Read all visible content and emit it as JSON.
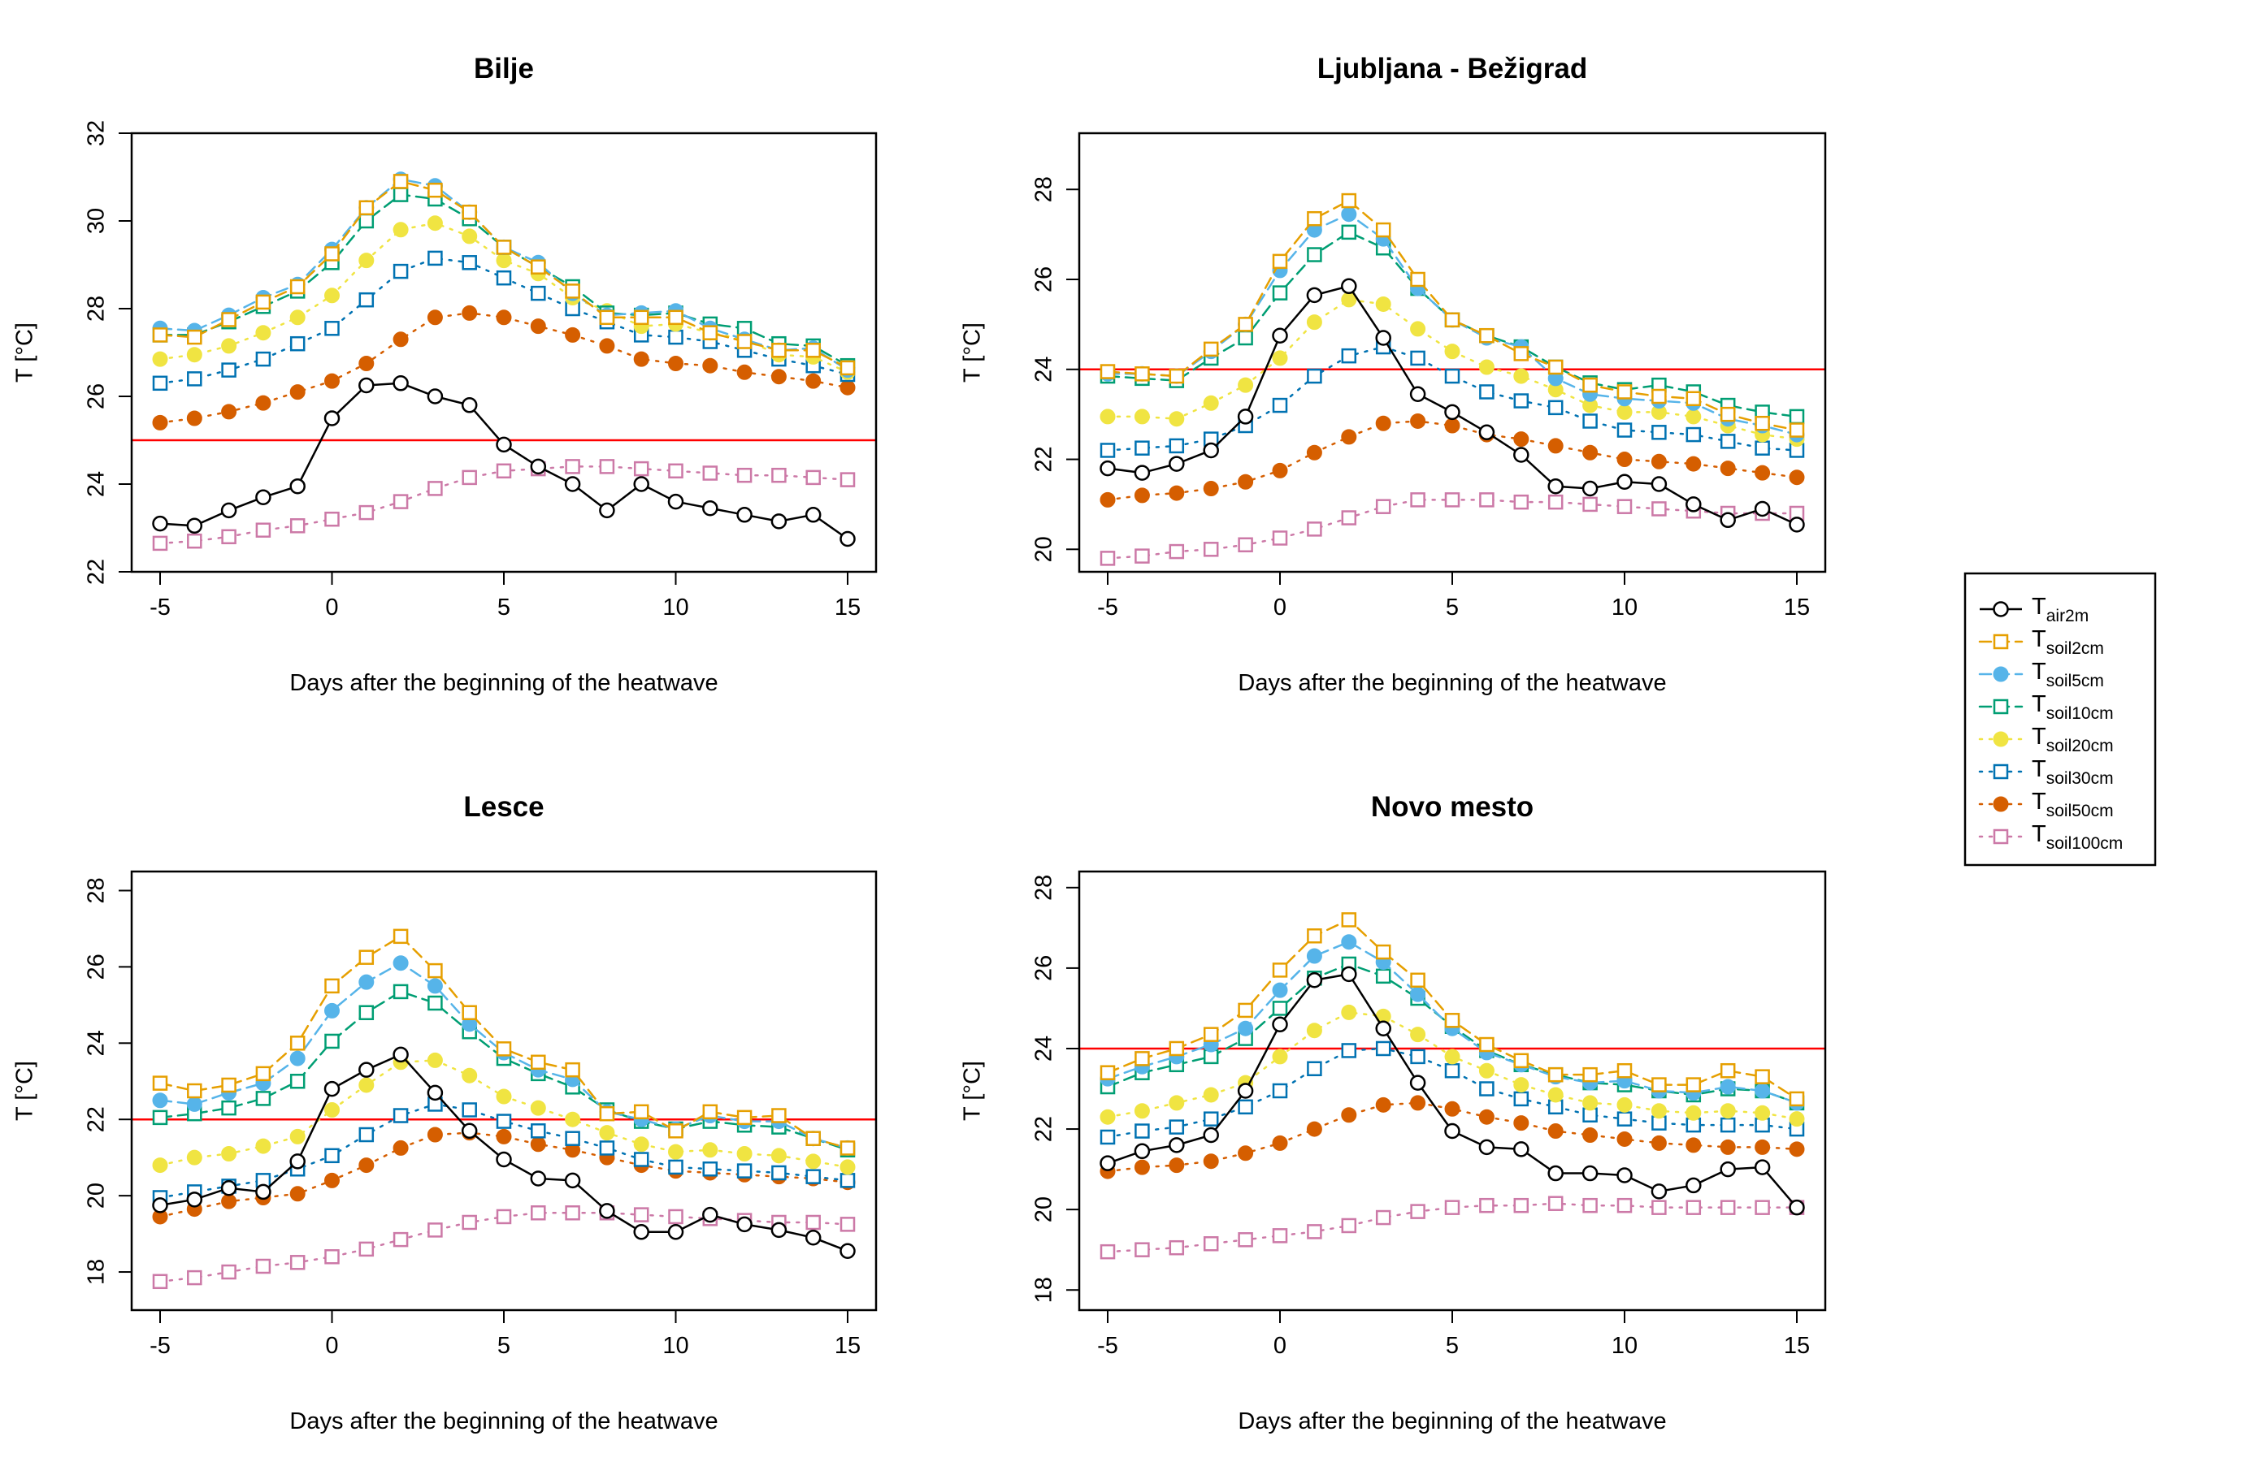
{
  "x_label": "Days after the beginning of the heatwave",
  "y_label": "T [°C]",
  "legend": {
    "placement": "right",
    "entries": [
      {
        "main": "T",
        "sub": "air2m",
        "color": "#000000",
        "marker": "circle-open",
        "line": "solid"
      },
      {
        "main": "T",
        "sub": "soil2cm",
        "color": "#E69F00",
        "marker": "square-open",
        "line": "dashed"
      },
      {
        "main": "T",
        "sub": "soil5cm",
        "color": "#56B4E9",
        "marker": "circle-filled",
        "line": "dashed"
      },
      {
        "main": "T",
        "sub": "soil10cm",
        "color": "#009E73",
        "marker": "square-open",
        "line": "dashed"
      },
      {
        "main": "T",
        "sub": "soil20cm",
        "color": "#F0E442",
        "marker": "circle-filled",
        "line": "dotted"
      },
      {
        "main": "T",
        "sub": "soil30cm",
        "color": "#0072B2",
        "marker": "square-open",
        "line": "dotted"
      },
      {
        "main": "T",
        "sub": "soil50cm",
        "color": "#D55E00",
        "marker": "circle-filled",
        "line": "dotted"
      },
      {
        "main": "T",
        "sub": "soil100cm",
        "color": "#CC79A7",
        "marker": "square-open",
        "line": "dotted"
      }
    ]
  },
  "chart_data": [
    {
      "type": "line",
      "title": "Bilje",
      "xlabel": "Days after the beginning of the heatwave",
      "ylabel": "T [°C]",
      "xlim": [
        -5,
        15
      ],
      "ylim": [
        22,
        32
      ],
      "xticks": [
        -5,
        0,
        5,
        10,
        15
      ],
      "yticks": [
        22,
        24,
        26,
        28,
        30,
        32
      ],
      "threshold": 25,
      "x": [
        -5,
        -4,
        -3,
        -2,
        -1,
        0,
        1,
        2,
        3,
        4,
        5,
        6,
        7,
        8,
        9,
        10,
        11,
        12,
        13,
        14,
        15
      ],
      "series": [
        {
          "name": "air2m",
          "values": [
            23.1,
            23.05,
            23.4,
            23.7,
            23.95,
            25.5,
            26.25,
            26.3,
            26.0,
            25.8,
            24.9,
            24.4,
            24.0,
            23.4,
            24.0,
            23.6,
            23.45,
            23.3,
            23.15,
            23.3,
            22.75
          ]
        },
        {
          "name": "soil2cm",
          "values": [
            27.4,
            27.35,
            27.75,
            28.15,
            28.5,
            29.25,
            30.3,
            30.9,
            30.7,
            30.2,
            29.4,
            28.95,
            28.4,
            27.8,
            27.8,
            27.8,
            27.45,
            27.25,
            27.05,
            27.05,
            26.65
          ]
        },
        {
          "name": "soil5cm",
          "values": [
            27.55,
            27.5,
            27.85,
            28.25,
            28.55,
            29.35,
            30.3,
            30.95,
            30.8,
            30.2,
            29.4,
            29.05,
            28.35,
            27.85,
            27.9,
            27.95,
            27.55,
            27.3,
            27.05,
            27.1,
            26.6
          ]
        },
        {
          "name": "soil10cm",
          "values": [
            27.4,
            27.4,
            27.7,
            28.05,
            28.4,
            29.05,
            30.0,
            30.6,
            30.5,
            30.05,
            29.4,
            28.95,
            28.5,
            27.9,
            27.85,
            27.9,
            27.65,
            27.55,
            27.2,
            27.15,
            26.7
          ]
        },
        {
          "name": "soil20cm",
          "values": [
            26.85,
            26.95,
            27.15,
            27.45,
            27.8,
            28.3,
            29.1,
            29.8,
            29.95,
            29.65,
            29.1,
            28.8,
            28.25,
            27.95,
            27.6,
            27.65,
            27.45,
            27.3,
            26.95,
            26.9,
            26.55
          ]
        },
        {
          "name": "soil30cm",
          "values": [
            26.3,
            26.4,
            26.6,
            26.85,
            27.2,
            27.55,
            28.2,
            28.85,
            29.15,
            29.05,
            28.7,
            28.35,
            28.0,
            27.7,
            27.4,
            27.35,
            27.25,
            27.05,
            26.85,
            26.7,
            26.5
          ]
        },
        {
          "name": "soil50cm",
          "values": [
            25.4,
            25.5,
            25.65,
            25.85,
            26.1,
            26.35,
            26.75,
            27.3,
            27.8,
            27.9,
            27.8,
            27.6,
            27.4,
            27.15,
            26.85,
            26.75,
            26.7,
            26.55,
            26.45,
            26.35,
            26.2
          ]
        },
        {
          "name": "soil100cm",
          "values": [
            22.65,
            22.7,
            22.8,
            22.95,
            23.05,
            23.2,
            23.35,
            23.6,
            23.9,
            24.15,
            24.3,
            24.35,
            24.4,
            24.4,
            24.35,
            24.3,
            24.25,
            24.2,
            24.2,
            24.15,
            24.1
          ]
        }
      ]
    },
    {
      "type": "line",
      "title": "Ljubljana - Bežigrad",
      "xlabel": "Days after the beginning of the heatwave",
      "ylabel": "T [°C]",
      "xlim": [
        -5,
        15
      ],
      "ylim": [
        19.5,
        29.25
      ],
      "xticks": [
        -5,
        0,
        5,
        10,
        15
      ],
      "yticks": [
        20,
        22,
        24,
        26,
        28
      ],
      "threshold": 24,
      "x": [
        -5,
        -4,
        -3,
        -2,
        -1,
        0,
        1,
        2,
        3,
        4,
        5,
        6,
        7,
        8,
        9,
        10,
        11,
        12,
        13,
        14,
        15
      ],
      "series": [
        {
          "name": "air2m",
          "values": [
            21.8,
            21.7,
            21.9,
            22.2,
            22.95,
            24.75,
            25.65,
            25.85,
            24.7,
            23.45,
            23.05,
            22.6,
            22.1,
            21.4,
            21.35,
            21.5,
            21.45,
            21.0,
            20.65,
            20.9,
            20.55
          ]
        },
        {
          "name": "soil2cm",
          "values": [
            23.95,
            23.9,
            23.85,
            24.45,
            25.0,
            26.4,
            27.35,
            27.75,
            27.1,
            26.0,
            25.1,
            24.75,
            24.35,
            24.05,
            23.65,
            23.5,
            23.4,
            23.35,
            23.0,
            22.8,
            22.65
          ]
        },
        {
          "name": "soil5cm",
          "values": [
            23.9,
            23.9,
            23.85,
            24.4,
            25.0,
            26.2,
            27.1,
            27.45,
            26.9,
            25.8,
            25.1,
            24.7,
            24.5,
            23.8,
            23.45,
            23.35,
            23.3,
            23.25,
            22.9,
            22.75,
            22.55
          ]
        },
        {
          "name": "soil10cm",
          "values": [
            23.85,
            23.8,
            23.75,
            24.25,
            24.7,
            25.7,
            26.55,
            27.05,
            26.7,
            25.8,
            25.1,
            24.75,
            24.5,
            24.05,
            23.7,
            23.55,
            23.65,
            23.5,
            23.2,
            23.05,
            22.95
          ]
        },
        {
          "name": "soil20cm",
          "values": [
            22.95,
            22.95,
            22.9,
            23.25,
            23.65,
            24.25,
            25.05,
            25.55,
            25.45,
            24.9,
            24.4,
            24.05,
            23.85,
            23.55,
            23.2,
            23.05,
            23.05,
            22.95,
            22.75,
            22.55,
            22.45
          ]
        },
        {
          "name": "soil30cm",
          "values": [
            22.2,
            22.25,
            22.3,
            22.45,
            22.75,
            23.2,
            23.85,
            24.3,
            24.5,
            24.25,
            23.85,
            23.5,
            23.3,
            23.15,
            22.85,
            22.65,
            22.6,
            22.55,
            22.4,
            22.25,
            22.2
          ]
        },
        {
          "name": "soil50cm",
          "values": [
            21.1,
            21.2,
            21.25,
            21.35,
            21.5,
            21.75,
            22.15,
            22.5,
            22.8,
            22.85,
            22.75,
            22.55,
            22.45,
            22.3,
            22.15,
            22.0,
            21.95,
            21.9,
            21.8,
            21.7,
            21.6
          ]
        },
        {
          "name": "soil100cm",
          "values": [
            19.8,
            19.85,
            19.95,
            20.0,
            20.1,
            20.25,
            20.45,
            20.7,
            20.95,
            21.1,
            21.1,
            21.1,
            21.05,
            21.05,
            21.0,
            20.95,
            20.9,
            20.85,
            20.8,
            20.8,
            20.8
          ]
        }
      ]
    },
    {
      "type": "line",
      "title": "Lesce",
      "xlabel": "Days after the beginning of the heatwave",
      "ylabel": "T [°C]",
      "xlim": [
        -5,
        15
      ],
      "ylim": [
        17,
        28.5
      ],
      "xticks": [
        -5,
        0,
        5,
        10,
        15
      ],
      "yticks": [
        18,
        20,
        22,
        24,
        26,
        28
      ],
      "threshold": 22,
      "x": [
        -5,
        -4,
        -3,
        -2,
        -1,
        0,
        1,
        2,
        3,
        4,
        5,
        6,
        7,
        8,
        9,
        10,
        11,
        12,
        13,
        14,
        15
      ],
      "series": [
        {
          "name": "air2m",
          "values": [
            19.75,
            19.9,
            20.2,
            20.1,
            20.9,
            22.8,
            23.3,
            23.7,
            22.7,
            21.7,
            20.95,
            20.45,
            20.4,
            19.6,
            19.05,
            19.05,
            19.5,
            19.25,
            19.1,
            18.9,
            18.55
          ]
        },
        {
          "name": "soil2cm",
          "values": [
            22.95,
            22.75,
            22.9,
            23.2,
            24.0,
            25.5,
            26.25,
            26.8,
            25.9,
            24.8,
            23.85,
            23.5,
            23.3,
            22.15,
            22.2,
            21.7,
            22.2,
            22.05,
            22.1,
            21.5,
            21.25
          ]
        },
        {
          "name": "soil5cm",
          "values": [
            22.5,
            22.4,
            22.7,
            22.95,
            23.6,
            24.85,
            25.6,
            26.1,
            25.5,
            24.5,
            23.75,
            23.3,
            23.05,
            22.2,
            22.0,
            21.75,
            22.1,
            21.95,
            21.95,
            21.5,
            21.25
          ]
        },
        {
          "name": "soil10cm",
          "values": [
            22.05,
            22.15,
            22.3,
            22.55,
            23.0,
            24.05,
            24.8,
            25.35,
            25.05,
            24.3,
            23.6,
            23.2,
            22.85,
            22.25,
            21.95,
            21.75,
            21.95,
            21.85,
            21.8,
            21.5,
            21.2
          ]
        },
        {
          "name": "soil20cm",
          "values": [
            20.8,
            21.0,
            21.1,
            21.3,
            21.55,
            22.25,
            22.9,
            23.5,
            23.55,
            23.15,
            22.6,
            22.3,
            22.0,
            21.65,
            21.35,
            21.15,
            21.2,
            21.1,
            21.05,
            20.9,
            20.75
          ]
        },
        {
          "name": "soil30cm",
          "values": [
            19.95,
            20.1,
            20.25,
            20.4,
            20.7,
            21.05,
            21.6,
            22.1,
            22.4,
            22.25,
            21.95,
            21.7,
            21.5,
            21.25,
            20.95,
            20.75,
            20.7,
            20.65,
            20.6,
            20.5,
            20.4
          ]
        },
        {
          "name": "soil50cm",
          "values": [
            19.45,
            19.65,
            19.85,
            19.95,
            20.05,
            20.4,
            20.8,
            21.25,
            21.6,
            21.65,
            21.55,
            21.35,
            21.2,
            21.0,
            20.8,
            20.65,
            20.6,
            20.55,
            20.5,
            20.45,
            20.35
          ]
        },
        {
          "name": "soil100cm",
          "values": [
            17.75,
            17.85,
            18.0,
            18.15,
            18.25,
            18.4,
            18.6,
            18.85,
            19.1,
            19.3,
            19.45,
            19.55,
            19.55,
            19.55,
            19.5,
            19.45,
            19.4,
            19.35,
            19.3,
            19.3,
            19.25
          ]
        }
      ]
    },
    {
      "type": "line",
      "title": "Novo mesto",
      "xlabel": "Days after the beginning of the heatwave",
      "ylabel": "T [°C]",
      "xlim": [
        -5,
        15
      ],
      "ylim": [
        17.5,
        28.4
      ],
      "xticks": [
        -5,
        0,
        5,
        10,
        15
      ],
      "yticks": [
        18,
        20,
        22,
        24,
        26,
        28
      ],
      "threshold": 24,
      "x": [
        -5,
        -4,
        -3,
        -2,
        -1,
        0,
        1,
        2,
        3,
        4,
        5,
        6,
        7,
        8,
        9,
        10,
        11,
        12,
        13,
        14,
        15
      ],
      "series": [
        {
          "name": "air2m",
          "values": [
            21.15,
            21.45,
            21.6,
            21.85,
            22.95,
            24.6,
            25.7,
            25.85,
            24.5,
            23.15,
            21.95,
            21.55,
            21.5,
            20.9,
            20.9,
            20.85,
            20.45,
            20.6,
            21.0,
            21.05,
            20.05
          ]
        },
        {
          "name": "soil2cm",
          "values": [
            23.4,
            23.75,
            24.0,
            24.35,
            24.95,
            25.95,
            26.8,
            27.2,
            26.4,
            25.7,
            24.7,
            24.1,
            23.7,
            23.35,
            23.35,
            23.45,
            23.1,
            23.1,
            23.45,
            23.3,
            22.75
          ]
        },
        {
          "name": "soil5cm",
          "values": [
            23.25,
            23.55,
            23.8,
            24.1,
            24.5,
            25.45,
            26.3,
            26.65,
            26.15,
            25.35,
            24.5,
            23.9,
            23.6,
            23.3,
            23.15,
            23.2,
            22.95,
            22.9,
            23.05,
            22.95,
            22.65
          ]
        },
        {
          "name": "soil10cm",
          "values": [
            23.05,
            23.4,
            23.6,
            23.8,
            24.25,
            25.0,
            25.75,
            26.1,
            25.8,
            25.25,
            24.55,
            23.95,
            23.6,
            23.35,
            23.15,
            23.1,
            22.95,
            22.85,
            23.0,
            22.95,
            22.65
          ]
        },
        {
          "name": "soil20cm",
          "values": [
            22.3,
            22.45,
            22.65,
            22.85,
            23.15,
            23.8,
            24.45,
            24.9,
            24.8,
            24.35,
            23.8,
            23.45,
            23.1,
            22.85,
            22.65,
            22.6,
            22.45,
            22.4,
            22.45,
            22.4,
            22.25
          ]
        },
        {
          "name": "soil30cm",
          "values": [
            21.8,
            21.95,
            22.05,
            22.25,
            22.55,
            22.95,
            23.5,
            23.95,
            24.0,
            23.8,
            23.45,
            23.0,
            22.75,
            22.55,
            22.35,
            22.25,
            22.15,
            22.1,
            22.1,
            22.1,
            22.0
          ]
        },
        {
          "name": "soil50cm",
          "values": [
            20.95,
            21.05,
            21.1,
            21.2,
            21.4,
            21.65,
            22.0,
            22.35,
            22.6,
            22.65,
            22.5,
            22.3,
            22.15,
            21.95,
            21.85,
            21.75,
            21.65,
            21.6,
            21.55,
            21.55,
            21.5
          ]
        },
        {
          "name": "soil100cm",
          "values": [
            18.95,
            19.0,
            19.05,
            19.15,
            19.25,
            19.35,
            19.45,
            19.6,
            19.8,
            19.95,
            20.05,
            20.1,
            20.1,
            20.15,
            20.1,
            20.1,
            20.05,
            20.05,
            20.05,
            20.05,
            20.05
          ]
        }
      ]
    }
  ]
}
